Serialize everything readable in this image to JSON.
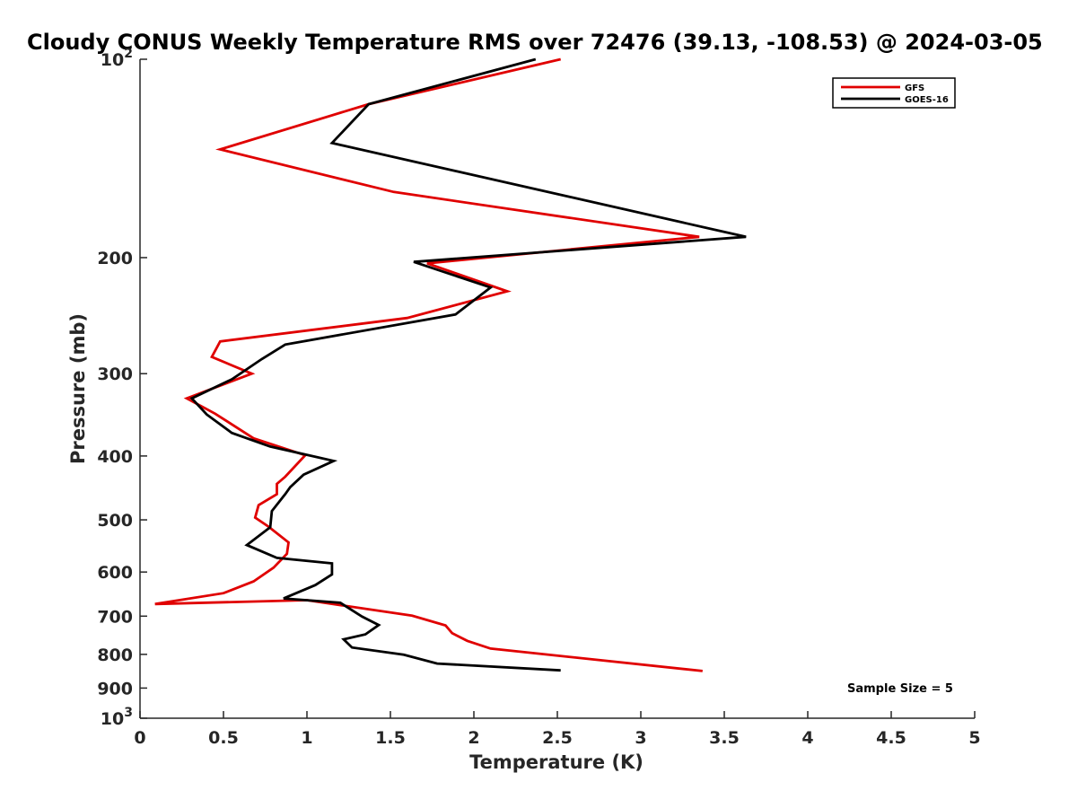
{
  "chart_data": {
    "type": "line",
    "title": "Cloudy CONUS Weekly Temperature RMS over 72476 (39.13, -108.53) @ 2024-03-05",
    "xlabel": "Temperature (K)",
    "ylabel": "Pressure (mb)",
    "xlim": [
      0,
      5
    ],
    "ylim": [
      100,
      1000
    ],
    "y_scale": "log",
    "y_reversed": true,
    "x_ticks": [
      0,
      0.5,
      1,
      1.5,
      2,
      2.5,
      3,
      3.5,
      4,
      4.5,
      5
    ],
    "x_tick_labels": [
      "0",
      "0.5",
      "1",
      "1.5",
      "2",
      "2.5",
      "3",
      "3.5",
      "4",
      "4.5",
      "5"
    ],
    "y_ticks": [
      {
        "value": 100,
        "base": "10",
        "exp": "2"
      },
      {
        "value": 200,
        "label": "200"
      },
      {
        "value": 300,
        "label": "300"
      },
      {
        "value": 400,
        "label": "400"
      },
      {
        "value": 500,
        "label": "500"
      },
      {
        "value": 600,
        "label": "600"
      },
      {
        "value": 700,
        "label": "700"
      },
      {
        "value": 800,
        "label": "800"
      },
      {
        "value": 900,
        "label": "900"
      },
      {
        "value": 1000,
        "base": "10",
        "exp": "3"
      }
    ],
    "grid": false,
    "legend_position": "top-right",
    "annotation": "Sample Size = 5",
    "series": [
      {
        "name": "GFS",
        "color": "#e00000",
        "points": [
          [
            2.52,
            100
          ],
          [
            1.37,
            117
          ],
          [
            0.48,
            137
          ],
          [
            1.52,
            159
          ],
          [
            3.35,
            186
          ],
          [
            1.72,
            204
          ],
          [
            2.2,
            225
          ],
          [
            1.6,
            247
          ],
          [
            0.48,
            268
          ],
          [
            0.43,
            283
          ],
          [
            0.67,
            300
          ],
          [
            0.28,
            327
          ],
          [
            0.45,
            345
          ],
          [
            0.68,
            376
          ],
          [
            0.99,
            399
          ],
          [
            0.87,
            430
          ],
          [
            0.82,
            441
          ],
          [
            0.82,
            457
          ],
          [
            0.71,
            475
          ],
          [
            0.69,
            496
          ],
          [
            0.77,
            512
          ],
          [
            0.89,
            541
          ],
          [
            0.88,
            563
          ],
          [
            0.8,
            591
          ],
          [
            0.68,
            620
          ],
          [
            0.5,
            646
          ],
          [
            0.09,
            671
          ],
          [
            1.0,
            662
          ],
          [
            1.63,
            699
          ],
          [
            1.83,
            723
          ],
          [
            1.87,
            743
          ],
          [
            1.96,
            763
          ],
          [
            2.1,
            784
          ],
          [
            3.37,
            848
          ]
        ]
      },
      {
        "name": "GOES-16",
        "color": "#000000",
        "points": [
          [
            2.37,
            100
          ],
          [
            1.37,
            117
          ],
          [
            1.15,
            134
          ],
          [
            3.63,
            186
          ],
          [
            1.64,
            203
          ],
          [
            2.1,
            222
          ],
          [
            1.89,
            244
          ],
          [
            0.87,
            271
          ],
          [
            0.73,
            285
          ],
          [
            0.55,
            306
          ],
          [
            0.31,
            327
          ],
          [
            0.4,
            346
          ],
          [
            0.55,
            369
          ],
          [
            0.78,
            387
          ],
          [
            1.16,
            407
          ],
          [
            0.98,
            427
          ],
          [
            0.9,
            446
          ],
          [
            0.87,
            457
          ],
          [
            0.79,
            485
          ],
          [
            0.78,
            513
          ],
          [
            0.64,
            546
          ],
          [
            0.82,
            571
          ],
          [
            1.15,
            582
          ],
          [
            1.15,
            605
          ],
          [
            1.05,
            628
          ],
          [
            0.86,
            658
          ],
          [
            1.2,
            668
          ],
          [
            1.33,
            701
          ],
          [
            1.43,
            722
          ],
          [
            1.35,
            746
          ],
          [
            1.22,
            759
          ],
          [
            1.27,
            781
          ],
          [
            1.58,
            801
          ],
          [
            1.78,
            826
          ],
          [
            2.52,
            846
          ]
        ]
      }
    ]
  }
}
